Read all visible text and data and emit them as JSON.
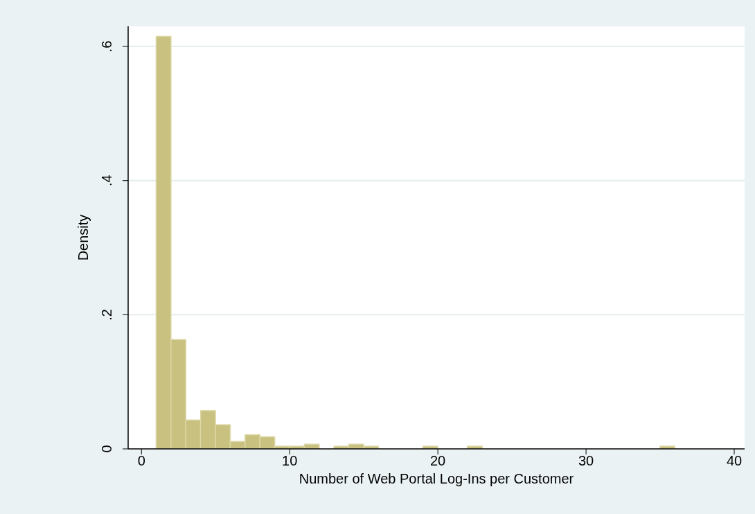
{
  "chart_data": {
    "type": "histogram",
    "xlabel": "Number of Web Portal Log-Ins per Customer",
    "ylabel": "Density",
    "bins": [
      1,
      2,
      3,
      4,
      5,
      6,
      7,
      8,
      9,
      10,
      11,
      12,
      13,
      14,
      15,
      16,
      17,
      18,
      19,
      20,
      21,
      22,
      23,
      24,
      25,
      26,
      27,
      28,
      29,
      30,
      31,
      32,
      33,
      34,
      35,
      36
    ],
    "values": [
      0.615,
      0.163,
      0.043,
      0.057,
      0.036,
      0.011,
      0.021,
      0.018,
      0.004,
      0.004,
      0.007,
      0,
      0.004,
      0.007,
      0.004,
      0,
      0,
      0,
      0.004,
      0,
      0,
      0.004,
      0,
      0,
      0,
      0,
      0,
      0,
      0,
      0,
      0,
      0,
      0,
      0,
      0.004
    ],
    "color": "#c9c17f",
    "xlim": [
      -0.9,
      40.7
    ],
    "xticks": [
      0,
      10,
      20,
      30,
      40
    ],
    "ylim": [
      0,
      0.63
    ],
    "yticks": [
      0,
      {
        "value": 0.2,
        "label": ".2"
      },
      {
        "value": 0.4,
        "label": ".4"
      },
      {
        "value": 0.6,
        "label": ".6"
      }
    ],
    "grid": "y"
  }
}
